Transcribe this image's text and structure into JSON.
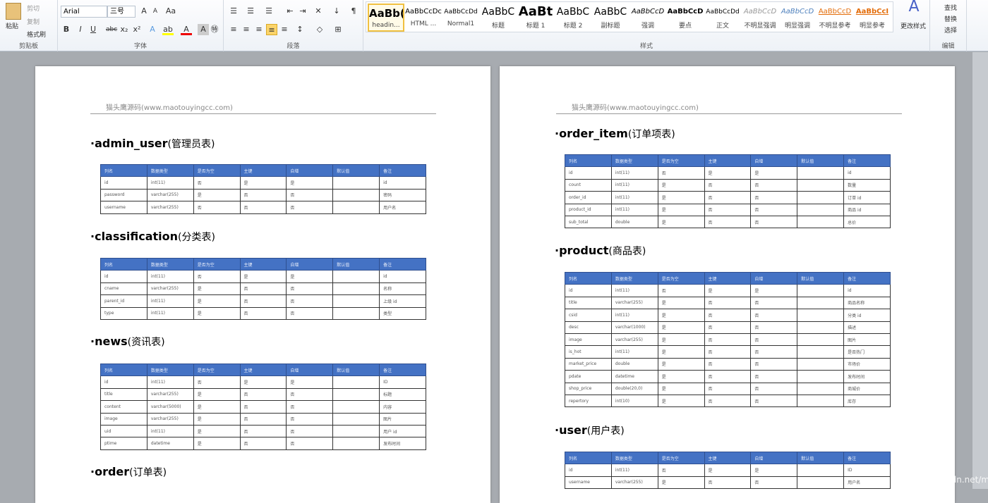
{
  "ribbon": {
    "clipboard": {
      "paste": "粘贴",
      "cut": "剪切",
      "copy": "复制",
      "format_painter": "格式刷",
      "label": "剪贴板"
    },
    "font": {
      "name": "Arial",
      "size": "三号",
      "label": "字体"
    },
    "paragraph": {
      "label": "段落"
    },
    "styles": {
      "label": "样式",
      "items": [
        {
          "preview": "AaBb(",
          "name": "headin..."
        },
        {
          "preview": "AaBbCcDc",
          "name": "HTML ..."
        },
        {
          "preview": "AaBbCcDd",
          "name": "Normal1"
        },
        {
          "preview": "AaBbC",
          "name": "标题"
        },
        {
          "preview": "AaBt",
          "name": "标题 1"
        },
        {
          "preview": "AaBbC",
          "name": "标题 2"
        },
        {
          "preview": "AaBbC",
          "name": "副标题"
        },
        {
          "preview": "AaBbCcD",
          "name": "强调"
        },
        {
          "preview": "AaBbCcD",
          "name": "要点"
        },
        {
          "preview": "AaBbCcDd",
          "name": "正文"
        },
        {
          "preview": "AaBbCcD",
          "name": "不明显强调"
        },
        {
          "preview": "AaBbCcD",
          "name": "明显强调"
        },
        {
          "preview": "AaBbCcD",
          "name": "不明显参考"
        },
        {
          "preview": "AaBbCcI",
          "name": "明显参考"
        }
      ],
      "change": "更改样式"
    },
    "editing": {
      "find": "查找",
      "replace": "替换",
      "select": "选择",
      "label": "编辑"
    }
  },
  "header_text": "猫头鹰源码(www.maotouyingcc.com)",
  "columns": [
    "列名",
    "数据类型",
    "是否为空",
    "主键",
    "自增",
    "默认值",
    "备注"
  ],
  "tables": [
    {
      "name": "admin_user",
      "cn": "(管理员表)",
      "rows": [
        [
          "id",
          "int(11)",
          "否",
          "是",
          "是",
          "",
          "id"
        ],
        [
          "password",
          "varchar(255)",
          "是",
          "否",
          "否",
          "",
          "密码"
        ],
        [
          "username",
          "varchar(255)",
          "否",
          "否",
          "否",
          "",
          "用户名"
        ]
      ]
    },
    {
      "name": "classification",
      "cn": "(分类表)",
      "rows": [
        [
          "id",
          "int(11)",
          "否",
          "是",
          "是",
          "",
          "id"
        ],
        [
          "cname",
          "varchar(255)",
          "是",
          "否",
          "否",
          "",
          "名称"
        ],
        [
          "parent_id",
          "int(11)",
          "是",
          "否",
          "否",
          "",
          "上级 id"
        ],
        [
          "type",
          "int(11)",
          "是",
          "否",
          "否",
          "",
          "类型"
        ]
      ]
    },
    {
      "name": "news",
      "cn": "(资讯表)",
      "rows": [
        [
          "id",
          "int(11)",
          "否",
          "是",
          "是",
          "",
          "ID"
        ],
        [
          "title",
          "varchar(255)",
          "是",
          "否",
          "否",
          "",
          "标题"
        ],
        [
          "content",
          "varchar(5000)",
          "是",
          "否",
          "否",
          "",
          "内容"
        ],
        [
          "image",
          "varchar(255)",
          "是",
          "否",
          "否",
          "",
          "图片"
        ],
        [
          "uid",
          "int(11)",
          "是",
          "否",
          "否",
          "",
          "用户 id"
        ],
        [
          "ptime",
          "datetime",
          "是",
          "否",
          "否",
          "",
          "发布时间"
        ]
      ]
    },
    {
      "name": "order",
      "cn": "(订单表)",
      "rows": []
    },
    {
      "name": "order_item",
      "cn": "(订单项表)",
      "rows": [
        [
          "id",
          "int(11)",
          "否",
          "是",
          "是",
          "",
          "id"
        ],
        [
          "count",
          "int(11)",
          "是",
          "否",
          "否",
          "",
          "数量"
        ],
        [
          "order_id",
          "int(11)",
          "是",
          "否",
          "否",
          "",
          "订单 id"
        ],
        [
          "product_id",
          "int(11)",
          "是",
          "否",
          "否",
          "",
          "商品 id"
        ],
        [
          "sub_total",
          "double",
          "是",
          "否",
          "否",
          "",
          "总价"
        ]
      ]
    },
    {
      "name": "product",
      "cn": "(商品表)",
      "rows": [
        [
          "id",
          "int(11)",
          "否",
          "是",
          "是",
          "",
          "id"
        ],
        [
          "title",
          "varchar(255)",
          "是",
          "否",
          "否",
          "",
          "商品名称"
        ],
        [
          "csid",
          "int(11)",
          "是",
          "否",
          "否",
          "",
          "分类 id"
        ],
        [
          "desc",
          "varchar(1000)",
          "是",
          "否",
          "否",
          "",
          "描述"
        ],
        [
          "image",
          "varchar(255)",
          "是",
          "否",
          "否",
          "",
          "图片"
        ],
        [
          "is_hot",
          "int(11)",
          "是",
          "否",
          "否",
          "",
          "是否热门"
        ],
        [
          "market_price",
          "double",
          "是",
          "否",
          "否",
          "",
          "市场价"
        ],
        [
          "pdate",
          "datetime",
          "是",
          "否",
          "否",
          "",
          "发布时间"
        ],
        [
          "shop_price",
          "double(20,0)",
          "是",
          "否",
          "否",
          "",
          "商城价"
        ],
        [
          "repertory",
          "int(10)",
          "是",
          "否",
          "否",
          "",
          "库存"
        ]
      ]
    },
    {
      "name": "user",
      "cn": "(用户表)",
      "rows": [
        [
          "id",
          "int(11)",
          "否",
          "是",
          "是",
          "",
          "ID"
        ],
        [
          "username",
          "varchar(255)",
          "是",
          "否",
          "否",
          "",
          "用户名"
        ]
      ]
    }
  ],
  "watermark": "https://blog.csdn.net/mtyedu"
}
